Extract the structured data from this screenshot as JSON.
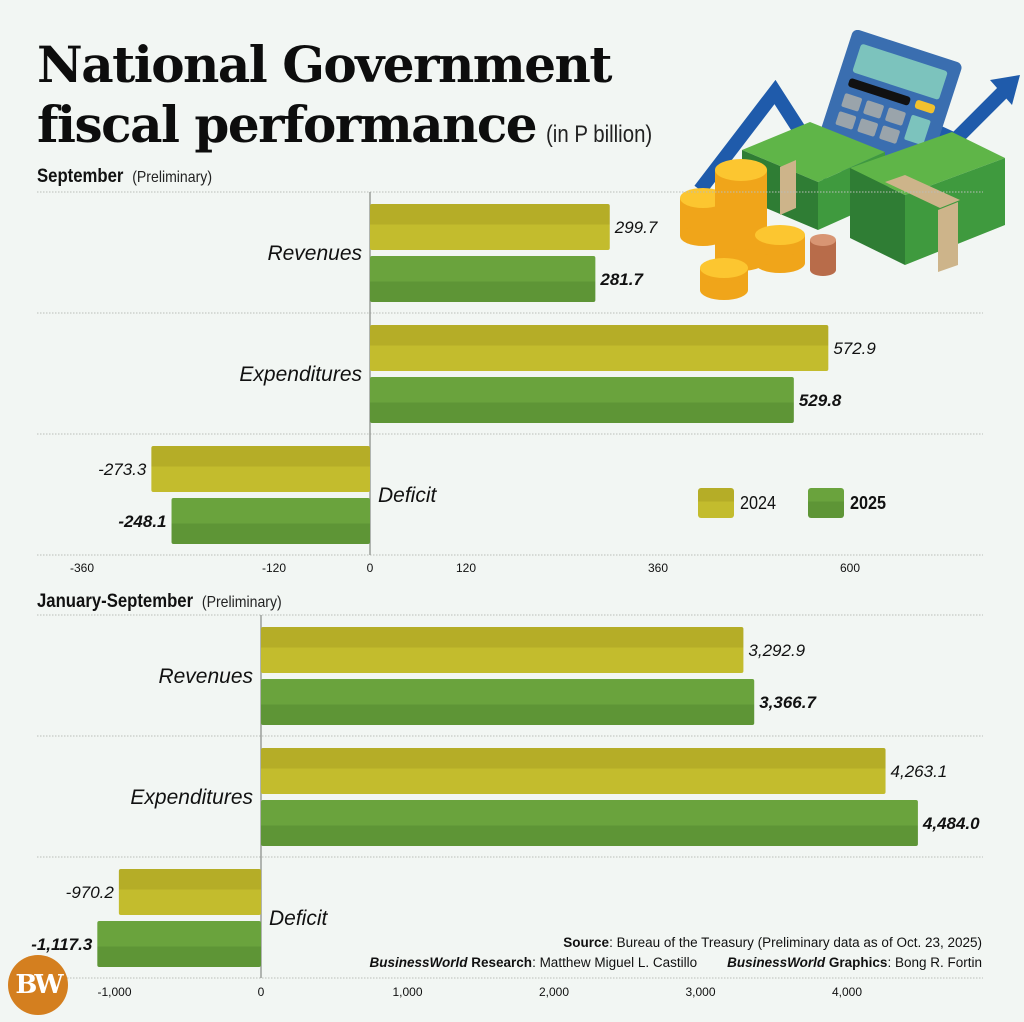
{
  "header": {
    "title_line1": "National Government",
    "title_line2": "fiscal performance",
    "unit": "(in P billion)"
  },
  "legend": {
    "items": [
      {
        "label": "2024",
        "color": "#c3bc2d"
      },
      {
        "label": "2025",
        "color": "#6aa33d"
      }
    ]
  },
  "colors": {
    "y2024_top": "#b5ad27",
    "y2024_bottom": "#c3bc2d",
    "y2025_top": "#6aa33d",
    "y2025_bottom": "#5e9536",
    "background": "#f2f6f3",
    "logo": "#d47f1f"
  },
  "chart_data": [
    {
      "type": "bar",
      "orientation": "horizontal",
      "title": "September",
      "subtitle": "(Preliminary)",
      "unit": "P billion",
      "categories": [
        "Revenues",
        "Expenditures",
        "Deficit"
      ],
      "series": [
        {
          "name": "2024",
          "values": [
            299.7,
            572.9,
            -273.3
          ],
          "labels": [
            "299.7",
            "572.9",
            "-273.3"
          ]
        },
        {
          "name": "2025",
          "values": [
            281.7,
            529.8,
            -248.1
          ],
          "labels": [
            "281.7",
            "529.8",
            "-248.1"
          ]
        }
      ],
      "xticks": [
        -360,
        -120,
        0,
        120,
        360,
        600
      ],
      "xtick_labels": [
        "-360",
        "-120",
        "0",
        "120",
        "360",
        "600"
      ],
      "xlim": [
        -360,
        750
      ],
      "grid": "horizontal dotted separators",
      "legend": "bottom-right"
    },
    {
      "type": "bar",
      "orientation": "horizontal",
      "title": "January-September",
      "subtitle": "(Preliminary)",
      "unit": "P billion",
      "categories": [
        "Revenues",
        "Expenditures",
        "Deficit"
      ],
      "series": [
        {
          "name": "2024",
          "values": [
            3292.9,
            4263.1,
            -970.2
          ],
          "labels": [
            "3,292.9",
            "4,263.1",
            "-970.2"
          ]
        },
        {
          "name": "2025",
          "values": [
            3366.7,
            4484.0,
            -1117.3
          ],
          "labels": [
            "3,366.7",
            "4,484.0",
            "-1,117.3"
          ]
        }
      ],
      "xticks": [
        -1000,
        0,
        1000,
        2000,
        3000,
        4000
      ],
      "xtick_labels": [
        "-1,000",
        "0",
        "1,000",
        "2,000",
        "3,000",
        "4,000"
      ],
      "xlim": [
        -1200,
        4900
      ],
      "grid": "horizontal dotted separators"
    }
  ],
  "footer": {
    "source_label": "Source",
    "source_text": ": Bureau of the Treasury (Preliminary data as of Oct. 23, 2025)",
    "research_brand": "BusinessWorld",
    "research_label": " Research",
    "research_name": ": Matthew Miguel L. Castillo",
    "graphics_brand": "BusinessWorld",
    "graphics_label": " Graphics",
    "graphics_name": ": Bong R. Fortin",
    "logo_text": "BW"
  },
  "illustration": {
    "icons": [
      "trend-arrow-icon",
      "calculator-icon",
      "cash-stack-icon",
      "gold-coins-icon",
      "copper-coins-icon"
    ]
  }
}
